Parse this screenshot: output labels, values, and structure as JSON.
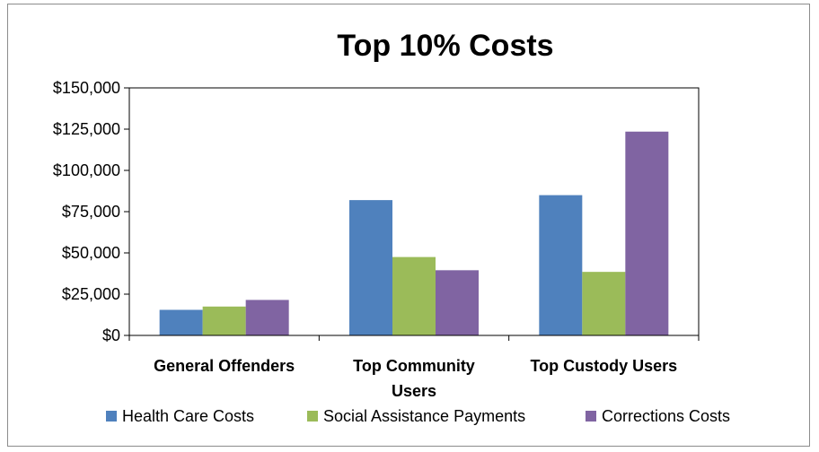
{
  "chart_data": {
    "type": "bar",
    "title": "Top 10% Costs",
    "categories": [
      [
        "General Offenders"
      ],
      [
        "Top Community",
        "Users"
      ],
      [
        "Top Custody Users"
      ]
    ],
    "series": [
      {
        "name": "Health Care Costs",
        "color": "#4F81BD",
        "values": [
          15500,
          82000,
          85000
        ]
      },
      {
        "name": "Social Assistance Payments",
        "color": "#9BBB59",
        "values": [
          17500,
          47500,
          38500
        ]
      },
      {
        "name": "Corrections Costs",
        "color": "#8064A2",
        "values": [
          21500,
          39500,
          123500
        ]
      }
    ],
    "ylim": [
      0,
      150000
    ],
    "yticks": [
      {
        "value": 0,
        "label": "$0"
      },
      {
        "value": 25000,
        "label": "$25,000"
      },
      {
        "value": 50000,
        "label": "$50,000"
      },
      {
        "value": 75000,
        "label": "$75,000"
      },
      {
        "value": 100000,
        "label": "$100,000"
      },
      {
        "value": 125000,
        "label": "$125,000"
      },
      {
        "value": 150000,
        "label": "$150,000"
      }
    ],
    "grid": false,
    "legend_position": "bottom"
  }
}
